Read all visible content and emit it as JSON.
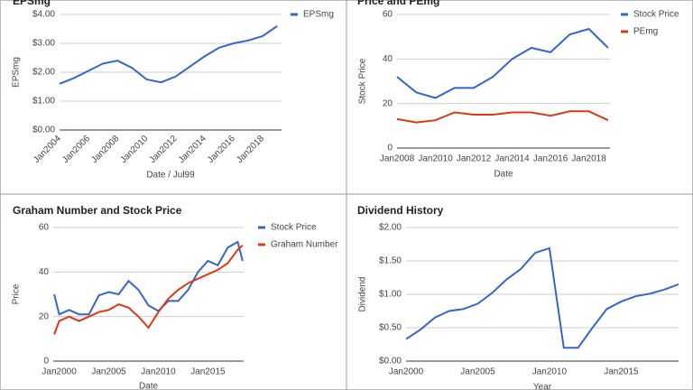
{
  "chart_data": [
    {
      "type": "line",
      "title": "EPSmg",
      "x_label": "Date / Jul99",
      "y_label": "EPSmg",
      "grid": true,
      "x": [
        2004,
        2005,
        2006,
        2007,
        2008,
        2009,
        2010,
        2011,
        2012,
        2013,
        2014,
        2015,
        2016,
        2017,
        2018,
        2019
      ],
      "series": [
        {
          "name": "EPSmg",
          "color": "#3366cc",
          "values": [
            1.6,
            1.8,
            2.05,
            2.3,
            2.4,
            2.15,
            1.75,
            1.65,
            1.85,
            2.2,
            2.55,
            2.85,
            3.0,
            3.1,
            3.25,
            3.6
          ]
        }
      ],
      "xlim": [
        2004,
        2019.3
      ],
      "ylim": [
        0,
        4
      ],
      "xticks": [
        {
          "value": 2004,
          "label": "Jan2004"
        },
        {
          "value": 2006,
          "label": "Jan2006"
        },
        {
          "value": 2008,
          "label": "Jan2008"
        },
        {
          "value": 2010,
          "label": "Jan2010"
        },
        {
          "value": 2012,
          "label": "Jan2012"
        },
        {
          "value": 2014,
          "label": "Jan2014"
        },
        {
          "value": 2016,
          "label": "Jan2016"
        },
        {
          "value": 2018,
          "label": "Jan2018"
        }
      ],
      "yticks": [
        {
          "value": 0,
          "label": "$0.00"
        },
        {
          "value": 1,
          "label": "$1.00"
        },
        {
          "value": 2,
          "label": "$2.00"
        },
        {
          "value": 3,
          "label": "$3.00"
        },
        {
          "value": 4,
          "label": "$4.00"
        }
      ]
    },
    {
      "type": "line",
      "title": "Price and PEmg",
      "x_label": "Date",
      "y_label": "Stock Price",
      "grid": true,
      "x": [
        2008,
        2009,
        2010,
        2011,
        2012,
        2013,
        2014,
        2015,
        2016,
        2017,
        2018,
        2019
      ],
      "series": [
        {
          "name": "Stock Price",
          "color": "#3366cc",
          "values": [
            32,
            25,
            22.5,
            27,
            27,
            32,
            40,
            45,
            43,
            51,
            53.5,
            45
          ]
        },
        {
          "name": "PEmg",
          "color": "#dc3912",
          "values": [
            13,
            11.5,
            12.5,
            16,
            15,
            15,
            16,
            16,
            14.5,
            16.5,
            16.5,
            12.5
          ]
        }
      ],
      "xlim": [
        2008,
        2019.1
      ],
      "ylim": [
        0,
        60
      ],
      "xticks": [
        {
          "value": 2008,
          "label": "Jan2008"
        },
        {
          "value": 2010,
          "label": "Jan2010"
        },
        {
          "value": 2012,
          "label": "Jan2012"
        },
        {
          "value": 2014,
          "label": "Jan2014"
        },
        {
          "value": 2016,
          "label": "Jan2016"
        },
        {
          "value": 2018,
          "label": "Jan2018"
        }
      ],
      "yticks": [
        0,
        20,
        40,
        60
      ]
    },
    {
      "type": "line",
      "title": "Graham Number and Stock Price",
      "x_label": "Date",
      "y_label": "Price",
      "grid": true,
      "x": [
        1999.5,
        2000,
        2001,
        2002,
        2003,
        2004,
        2005,
        2006,
        2007,
        2008,
        2009,
        2010,
        2011,
        2012,
        2013,
        2014,
        2015,
        2016,
        2017,
        2018,
        2018.5
      ],
      "series": [
        {
          "name": "Stock Price",
          "color": "#3366cc",
          "values": [
            30,
            21,
            23,
            21,
            21,
            29.5,
            31,
            30,
            36,
            32,
            25,
            22.5,
            27,
            27,
            32,
            40,
            45,
            43,
            51,
            53.5,
            45
          ]
        },
        {
          "name": "Graham Number",
          "color": "#dc3912",
          "values": [
            12,
            18,
            20,
            18,
            20,
            22,
            23,
            25.5,
            24,
            20,
            15,
            22,
            28,
            32,
            35,
            37,
            39,
            41,
            44,
            50,
            52
          ]
        }
      ],
      "xlim": [
        1999.4,
        2018.6
      ],
      "ylim": [
        0,
        60
      ],
      "xticks": [
        {
          "value": 2000,
          "label": "Jan2000"
        },
        {
          "value": 2005,
          "label": "Jan2005"
        },
        {
          "value": 2010,
          "label": "Jan2010"
        },
        {
          "value": 2015,
          "label": "Jan2015"
        }
      ],
      "yticks": [
        0,
        20,
        40,
        60
      ]
    },
    {
      "type": "line",
      "title": "Dividend History",
      "x_label": "Year",
      "y_label": "Dividend",
      "grid": true,
      "x": [
        2000,
        2001,
        2002,
        2003,
        2004,
        2005,
        2006,
        2007,
        2008,
        2009,
        2010,
        2011,
        2012,
        2013,
        2014,
        2015,
        2016,
        2017,
        2018,
        2019
      ],
      "series": [
        {
          "name": "Dividend",
          "color": "#3366cc",
          "values": [
            0.33,
            0.47,
            0.65,
            0.75,
            0.78,
            0.86,
            1.02,
            1.22,
            1.38,
            1.62,
            1.69,
            0.2,
            0.2,
            0.5,
            0.78,
            0.89,
            0.97,
            1.01,
            1.07,
            1.15
          ]
        }
      ],
      "xlim": [
        2000,
        2019
      ],
      "ylim": [
        0,
        2
      ],
      "xticks": [
        {
          "value": 2000,
          "label": "Jan2000"
        },
        {
          "value": 2005,
          "label": "Jan2005"
        },
        {
          "value": 2010,
          "label": "Jan2010"
        },
        {
          "value": 2015,
          "label": "Jan2015"
        }
      ],
      "yticks": [
        {
          "value": 0,
          "label": "$0.00"
        },
        {
          "value": 0.5,
          "label": "$0.50"
        },
        {
          "value": 1,
          "label": "$1.00"
        },
        {
          "value": 1.5,
          "label": "$1.50"
        },
        {
          "value": 2,
          "label": "$2.00"
        }
      ]
    }
  ]
}
